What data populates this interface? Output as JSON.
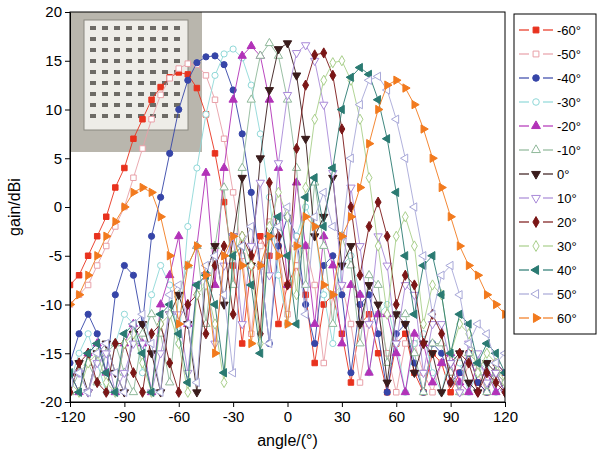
{
  "chart_data": {
    "type": "line",
    "x_label": "angle/(°)",
    "y_label": "gain/dBi",
    "xlim": [
      -120,
      120
    ],
    "ylim": [
      -20,
      20
    ],
    "xticks": [
      -120,
      -90,
      -60,
      -30,
      0,
      30,
      60,
      90,
      120
    ],
    "yticks": [
      -20,
      -15,
      -10,
      -5,
      0,
      5,
      10,
      15,
      20
    ],
    "grid": false,
    "legend": "right",
    "x": [
      -120,
      -115,
      -110,
      -105,
      -100,
      -95,
      -90,
      -85,
      -80,
      -75,
      -70,
      -65,
      -60,
      -55,
      -50,
      -45,
      -40,
      -35,
      -30,
      -25,
      -20,
      -15,
      -10,
      -5,
      0,
      5,
      10,
      15,
      20,
      25,
      30,
      35,
      40,
      45,
      50,
      55,
      60,
      65,
      70,
      75,
      80,
      85,
      90,
      95,
      100,
      105,
      110,
      115,
      120
    ],
    "series": [
      {
        "name": "-60°",
        "color": "#e8321e",
        "marker": "square",
        "values": [
          -8,
          -7,
          -5,
          -3,
          -1,
          2,
          4,
          7,
          9,
          11,
          12.3,
          13.3,
          13.8,
          13.6,
          12.2,
          9.5,
          5.5,
          0.5,
          -6,
          -14,
          -6,
          -3,
          -5,
          -12,
          -8,
          -6,
          -9,
          -16,
          -10,
          -9,
          -13,
          -18,
          -12,
          -11,
          -15,
          -19,
          -14,
          -13,
          -17,
          -19,
          -15,
          -16,
          -19,
          -17,
          -15,
          -18,
          -19,
          -16,
          -17
        ]
      },
      {
        "name": "-50°",
        "color": "#e8a0a8",
        "marker": "square-open",
        "values": [
          -10,
          -9,
          -8,
          -6,
          -4,
          -2,
          0,
          3,
          6,
          9,
          11.5,
          13.2,
          14.2,
          14.7,
          14.6,
          13.5,
          11,
          7,
          1.5,
          -5,
          -13,
          -4,
          -1.5,
          -4,
          -11,
          -6,
          -4,
          -8,
          -16,
          -9,
          -8,
          -12,
          -18,
          -12,
          -11,
          -15,
          -19,
          -14,
          -14,
          -17,
          -19,
          -16,
          -17,
          -19,
          -16,
          -17,
          -19,
          -17,
          -18
        ]
      },
      {
        "name": "-40°",
        "color": "#3645a8",
        "marker": "circle",
        "values": [
          -16,
          -13,
          -11,
          -13,
          -17,
          -9,
          -6,
          -7,
          -12,
          -3,
          1,
          5.5,
          10,
          13,
          14.8,
          15.4,
          15.5,
          14.6,
          12,
          7.5,
          1.5,
          -6,
          -14,
          -4,
          -1,
          -3,
          -10,
          -14,
          -6,
          -5,
          -9,
          -17,
          -10,
          -9,
          -13,
          -19,
          -13,
          -12,
          -16,
          -19,
          -14,
          -15,
          -18,
          -17,
          -15,
          -18,
          -19,
          -16,
          -17
        ]
      },
      {
        "name": "-30°",
        "color": "#8fd8d8",
        "marker": "circle-open",
        "values": [
          -18,
          -15,
          -13,
          -16,
          -19,
          -14,
          -11,
          -12,
          -17,
          -9,
          -6,
          -8,
          -14,
          -2,
          4,
          9.5,
          13.5,
          15.7,
          16.2,
          15.3,
          12.5,
          7.5,
          1,
          -7,
          -12,
          -3,
          0,
          -2,
          -9,
          -14,
          -6,
          -5,
          -9,
          -17,
          -11,
          -10,
          -14,
          -19,
          -14,
          -13,
          -17,
          -19,
          -15,
          -16,
          -19,
          -17,
          -16,
          -19,
          -18
        ]
      },
      {
        "name": "-20°",
        "color": "#b232b8",
        "marker": "triangle-up",
        "values": [
          -17,
          -19,
          -15,
          -14,
          -17,
          -19,
          -14,
          -12,
          -14,
          -19,
          -10,
          -7,
          -3,
          -12,
          -4,
          3.5,
          -8,
          4,
          11,
          15.5,
          16.5,
          15.5,
          11,
          4,
          -8,
          2.5,
          -4,
          -12,
          -3,
          -6,
          -14,
          -8,
          -9,
          -17,
          -11,
          -11,
          -15,
          -19,
          -13,
          -14,
          -18,
          -16,
          -15,
          -18,
          -19,
          -16,
          -17,
          -19,
          -18
        ]
      },
      {
        "name": "-10°",
        "color": "#8fb89a",
        "marker": "triangle-up-open",
        "values": [
          -19,
          -17,
          -16,
          -18,
          -15,
          -14,
          -17,
          -19,
          -13,
          -11,
          -13,
          -18,
          -9,
          -6,
          -4,
          -12,
          -4,
          2,
          -8,
          4,
          11,
          15.5,
          16.8,
          15.5,
          11,
          4,
          -8,
          2.5,
          -4,
          -12,
          -3,
          -6,
          -14,
          -7,
          -8,
          -16,
          -11,
          -11,
          -15,
          -19,
          -14,
          -14,
          -17,
          -19,
          -15,
          -16,
          -19,
          -17,
          -18
        ]
      },
      {
        "name": "0°",
        "color": "#3a1c1c",
        "marker": "triangle-down",
        "values": [
          -18,
          -16,
          -19,
          -15,
          -14,
          -17,
          -19,
          -13,
          -12,
          -15,
          -19,
          -11,
          -9,
          -12,
          -19,
          -7,
          -4,
          -10,
          -3,
          3,
          -6,
          5,
          12,
          16.2,
          16.8,
          13.5,
          7,
          -3,
          -1,
          3,
          -6,
          -4,
          -12,
          -8,
          -10,
          -18,
          -11,
          -12,
          -17,
          -14,
          -15,
          -19,
          -16,
          -15,
          -18,
          -19,
          -16,
          -17,
          -19
        ]
      },
      {
        "name": "10°",
        "color": "#a98ad8",
        "marker": "triangle-down-open",
        "values": [
          -18,
          -17,
          -19,
          -16,
          -15,
          -19,
          -17,
          -14,
          -14,
          -19,
          -15,
          -11,
          -11,
          -17,
          -8,
          -7,
          -14,
          -6,
          -3,
          -12,
          -4,
          2.5,
          -7,
          4.5,
          11.5,
          15.8,
          16.6,
          15,
          10.5,
          3.5,
          -8,
          2,
          -4,
          -12,
          -3,
          -6,
          -14,
          -8,
          -9,
          -17,
          -12,
          -12,
          -16,
          -19,
          -14,
          -15,
          -18,
          -17,
          -19
        ]
      },
      {
        "name": "20°",
        "color": "#7a1616",
        "marker": "diamond",
        "values": [
          -19,
          -16,
          -15,
          -18,
          -19,
          -14,
          -14,
          -17,
          -19,
          -13,
          -12,
          -16,
          -19,
          -10,
          -9,
          -13,
          -6,
          -4,
          -11,
          -3,
          -5,
          -13,
          2.5,
          -3,
          -8,
          6,
          12.5,
          15.6,
          15.8,
          13.5,
          8,
          0,
          -7,
          -2,
          0.5,
          -3,
          -10,
          -7,
          -8,
          -14,
          -11,
          -13,
          -18,
          -15,
          -16,
          -19,
          -17,
          -18,
          -19
        ]
      },
      {
        "name": "30°",
        "color": "#a8cf8a",
        "marker": "diamond-open",
        "values": [
          -18,
          -19,
          -16,
          -15,
          -18,
          -19,
          -14,
          -13,
          -16,
          -19,
          -12,
          -11,
          -14,
          -19,
          -9,
          -8,
          -12,
          -18,
          -5,
          -3,
          -6,
          -14,
          -2,
          1.5,
          -1,
          -9,
          2,
          9,
          13,
          14.8,
          15,
          13,
          9,
          3,
          -4,
          -11,
          -3,
          -1,
          -4,
          -12,
          -8,
          -9,
          -15,
          -12,
          -13,
          -17,
          -15,
          -16,
          -18
        ]
      },
      {
        "name": "40°",
        "color": "#2a7a72",
        "marker": "triangle-left",
        "values": [
          -17,
          -19,
          -15,
          -14,
          -17,
          -19,
          -13,
          -12,
          -15,
          -19,
          -11,
          -10,
          -13,
          -18,
          -8,
          -7,
          -10,
          -17,
          -5,
          -4,
          -8,
          -15,
          -3,
          -1,
          -5,
          -12,
          1,
          3,
          -2,
          4,
          10,
          13.3,
          14.3,
          13.6,
          11,
          7,
          1.5,
          -5,
          -11,
          -6,
          -5,
          -9,
          -15,
          -11,
          -12,
          -16,
          -14,
          -15,
          -17
        ]
      },
      {
        "name": "50°",
        "color": "#a8a8d8",
        "marker": "triangle-left-open",
        "values": [
          -18,
          -17,
          -19,
          -15,
          -14,
          -17,
          -19,
          -12,
          -11,
          -14,
          -19,
          -9,
          -8,
          -12,
          -18,
          -6,
          -5,
          -9,
          -17,
          -4,
          -2,
          -6,
          -14,
          -2,
          0,
          -4,
          -11,
          -1,
          1.5,
          -2,
          -3,
          5,
          10.5,
          13,
          13.4,
          12,
          9,
          5,
          0,
          -5,
          -11,
          -7,
          -6,
          -9,
          -14,
          -12,
          -13,
          -16,
          -15
        ]
      },
      {
        "name": "60°",
        "color": "#f27a1e",
        "marker": "triangle-right",
        "values": [
          -10,
          -9,
          -7,
          -5,
          -3,
          -1.5,
          0,
          1.5,
          2,
          1.5,
          -1,
          -5,
          -12,
          -6,
          -4,
          -7,
          -15,
          -5,
          -3,
          -6,
          -14,
          -6,
          -3,
          -5,
          -12,
          -4,
          -1,
          -2,
          -8,
          -9,
          -3,
          -1,
          2,
          6.5,
          10,
          12.5,
          13,
          12.2,
          10.5,
          8,
          5,
          2,
          -1,
          -4,
          -6,
          -7,
          -9,
          -10,
          -11
        ]
      }
    ]
  }
}
